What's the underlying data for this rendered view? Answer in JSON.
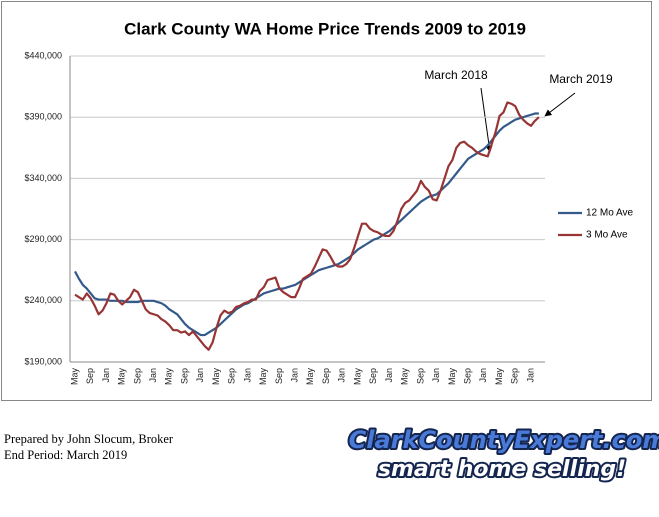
{
  "chart_data": {
    "type": "line",
    "title": "Clark County WA Home Price Trends 2009 to 2019",
    "categories": [
      "May",
      null,
      null,
      null,
      "Sep",
      null,
      null,
      null,
      "Jan",
      null,
      null,
      null,
      "May",
      null,
      null,
      null,
      "Sep",
      null,
      null,
      null,
      "Jan",
      null,
      null,
      null,
      "May",
      null,
      null,
      null,
      "Sep",
      null,
      null,
      null,
      "Jan",
      null,
      null,
      null,
      "May",
      null,
      null,
      null,
      "Sep",
      null,
      null,
      null,
      "Jan",
      null,
      null,
      null,
      "May",
      null,
      null,
      null,
      "Sep",
      null,
      null,
      null,
      "Jan",
      null,
      null,
      null,
      "May",
      null,
      null,
      null,
      "Sep",
      null,
      null,
      null,
      "Jan",
      null,
      null,
      null,
      "May",
      null,
      null,
      null,
      "Sep",
      null,
      null,
      null,
      "Jan",
      null,
      null,
      null,
      "May",
      null,
      null,
      null,
      "Sep",
      null,
      null,
      null,
      "Jan",
      null,
      null,
      null,
      "May",
      null,
      null,
      null,
      "Sep",
      null,
      null,
      null,
      "Jan",
      null,
      null,
      null,
      "May",
      null,
      null,
      null,
      "Sep",
      null,
      null,
      null,
      "Jan",
      null,
      null
    ],
    "series": [
      {
        "name": "12 Mo Ave",
        "color": "#335a8a",
        "values": [
          264000,
          258000,
          253000,
          250000,
          246000,
          242000,
          241000,
          241000,
          241000,
          240000,
          240000,
          240000,
          240000,
          239000,
          239000,
          239000,
          239000,
          240000,
          240000,
          240000,
          240000,
          239000,
          238000,
          236000,
          233000,
          231000,
          229000,
          225000,
          221000,
          218000,
          216000,
          214000,
          212000,
          212000,
          214000,
          216000,
          218000,
          221000,
          224000,
          227000,
          230000,
          233000,
          235000,
          237000,
          238000,
          240000,
          242000,
          244000,
          246000,
          247000,
          248000,
          249000,
          250000,
          250000,
          251000,
          252000,
          253000,
          255000,
          257000,
          259000,
          261000,
          263000,
          265000,
          266000,
          267000,
          268000,
          269000,
          270000,
          272000,
          274000,
          276000,
          279000,
          282000,
          284000,
          286000,
          288000,
          290000,
          291000,
          293000,
          295000,
          297000,
          300000,
          303000,
          306000,
          309000,
          312000,
          315000,
          318000,
          321000,
          323000,
          325000,
          326000,
          327000,
          330000,
          333000,
          336000,
          340000,
          344000,
          348000,
          352000,
          356000,
          358000,
          360000,
          362000,
          364000,
          367000,
          371000,
          375000,
          379000,
          382000,
          384000,
          386000,
          388000,
          389000,
          390000,
          391000,
          392000,
          393000,
          393000
        ]
      },
      {
        "name": "3 Mo Ave",
        "color": "#983434",
        "values": [
          245000,
          243000,
          241000,
          246000,
          242000,
          236000,
          229000,
          232000,
          238000,
          246000,
          245000,
          240000,
          237000,
          240000,
          243000,
          249000,
          247000,
          240000,
          233000,
          230000,
          229000,
          228000,
          225000,
          223000,
          220000,
          216000,
          216000,
          214000,
          215000,
          212000,
          215000,
          211000,
          207000,
          203000,
          200000,
          206000,
          218000,
          228000,
          232000,
          230000,
          231000,
          235000,
          236000,
          238000,
          239000,
          241000,
          241000,
          248000,
          251000,
          257000,
          258000,
          259000,
          250000,
          247000,
          245000,
          243000,
          243000,
          250000,
          258000,
          260000,
          262000,
          268000,
          275000,
          282000,
          281000,
          276000,
          270000,
          268000,
          268000,
          270000,
          274000,
          283000,
          293000,
          303000,
          303000,
          299000,
          297000,
          296000,
          294000,
          293000,
          293000,
          297000,
          305000,
          315000,
          320000,
          322000,
          326000,
          330000,
          338000,
          333000,
          330000,
          323000,
          322000,
          330000,
          340000,
          350000,
          355000,
          365000,
          369000,
          370000,
          367000,
          365000,
          362000,
          360000,
          359000,
          358000,
          368000,
          378000,
          391000,
          394000,
          402000,
          401000,
          399000,
          392000,
          388000,
          385000,
          383000,
          387000,
          390000
        ]
      }
    ],
    "ylim": [
      190000,
      440000
    ],
    "yticks": [
      {
        "value": 190000,
        "label": "$190,000"
      },
      {
        "value": 240000,
        "label": "$240,000"
      },
      {
        "value": 290000,
        "label": "$290,000"
      },
      {
        "value": 340000,
        "label": "$340,000"
      },
      {
        "value": 390000,
        "label": "$390,000"
      },
      {
        "value": 440000,
        "label": "$440,000"
      }
    ],
    "grid": true,
    "legend": "right",
    "annotations": [
      {
        "text": "March 2018"
      },
      {
        "text": "March 2019"
      }
    ]
  },
  "footer": {
    "prepared": "Prepared by John Slocum, Broker",
    "end_period": "End Period: March 2019"
  },
  "logo": {
    "line1": "ClarkCountyExpert.com",
    "line2": "smart home selling!"
  }
}
